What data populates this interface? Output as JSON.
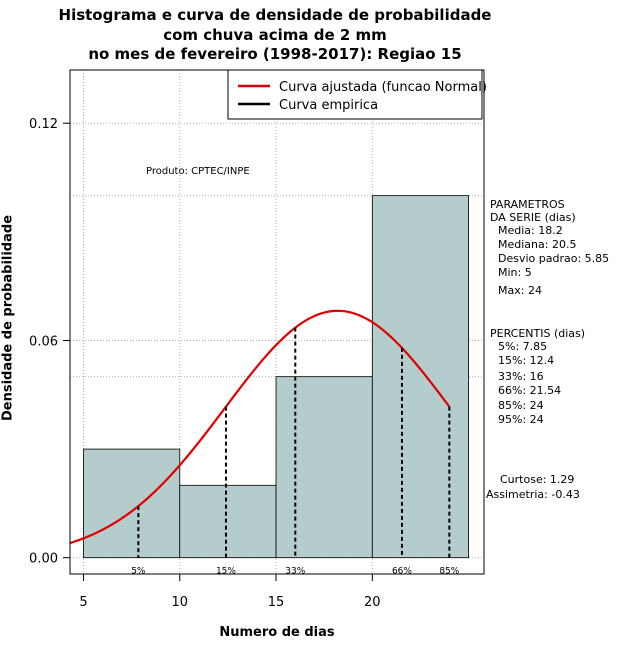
{
  "title_lines": [
    "Histograma e curva de densidade de probabilidade",
    "com chuva acima de 2 mm",
    "no mes de fevereiro (1998-2017): Regiao 15"
  ],
  "chart_data": {
    "type": "bar",
    "xlabel": "Numero de dias",
    "ylabel": "Densidade de probabilidade",
    "xlim": [
      4.3,
      25.8
    ],
    "ylim": [
      -0.0045,
      0.1347
    ],
    "x_ticks": [
      5,
      10,
      15,
      20
    ],
    "y_ticks": [
      0.0,
      0.06,
      0.12
    ],
    "y_tick_labels": [
      "0.00",
      "0.06",
      "0.12"
    ],
    "grid": true,
    "extra_grid_y": [
      0.1,
      0.05
    ],
    "bins": [
      {
        "from": 5,
        "to": 10,
        "density": 0.03
      },
      {
        "from": 10,
        "to": 15,
        "density": 0.02
      },
      {
        "from": 15,
        "to": 20,
        "density": 0.05
      },
      {
        "from": 20,
        "to": 25,
        "density": 0.1
      }
    ],
    "series": [
      {
        "name": "Curva ajustada (funcao Normal)",
        "color": "#e00000",
        "distribution": "normal",
        "mean": 18.2,
        "sd": 5.85,
        "x_range": [
          4.3,
          24
        ]
      },
      {
        "name": "Curva empirica",
        "color": "#000000"
      }
    ],
    "percentile_markers": [
      {
        "label": "5%",
        "x": 7.85
      },
      {
        "label": "15%",
        "x": 12.4
      },
      {
        "label": "33%",
        "x": 16
      },
      {
        "label": "66%",
        "x": 21.54
      },
      {
        "label": "85%",
        "x": 24
      }
    ],
    "legend_position": "top-right",
    "product_label": "Produto: CPTEC/INPE",
    "bar_color": "#b4cccc"
  },
  "side_stats": {
    "params_header": [
      "PARAMETROS",
      "DA SERIE (dias)"
    ],
    "params": [
      "Media: 18.2",
      "Mediana: 20.5",
      "Desvio padrao: 5.85",
      "Min: 5",
      "Max: 24"
    ],
    "percentis_header": "PERCENTIS (dias)",
    "percentis": [
      "5%: 7.85",
      "15%: 12.4",
      "33%: 16",
      "66%: 21.54",
      "85%: 24",
      "95%: 24"
    ],
    "moments": [
      "Curtose: 1.29",
      "Assimetria: -0.43"
    ]
  }
}
